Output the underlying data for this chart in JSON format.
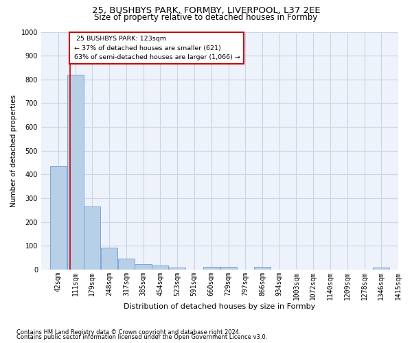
{
  "title1": "25, BUSHBYS PARK, FORMBY, LIVERPOOL, L37 2EE",
  "title2": "Size of property relative to detached houses in Formby",
  "xlabel": "Distribution of detached houses by size in Formby",
  "ylabel": "Number of detached properties",
  "footnote1": "Contains HM Land Registry data © Crown copyright and database right 2024.",
  "footnote2": "Contains public sector information licensed under the Open Government Licence v3.0.",
  "bar_color": "#b8cfe8",
  "bar_edge_color": "#6b9fd4",
  "grid_color": "#c8d4e8",
  "subject_line_color": "#cc0000",
  "annotation_box_color": "#cc0000",
  "bins": [
    42,
    111,
    179,
    248,
    317,
    385,
    454,
    523,
    591,
    660,
    729,
    797,
    866,
    934,
    1003,
    1072,
    1140,
    1209,
    1278,
    1346,
    1415
  ],
  "counts": [
    435,
    820,
    265,
    92,
    46,
    22,
    16,
    10,
    0,
    12,
    12,
    0,
    12,
    0,
    0,
    0,
    0,
    0,
    0,
    9
  ],
  "subject_size": 123,
  "subject_label": "25 BUSHBYS PARK: 123sqm",
  "annotation_line1": "← 37% of detached houses are smaller (621)",
  "annotation_line2": "63% of semi-detached houses are larger (1,066) →",
  "ylim": [
    0,
    1000
  ],
  "yticks": [
    0,
    100,
    200,
    300,
    400,
    500,
    600,
    700,
    800,
    900,
    1000
  ],
  "bg_color": "#eef2fa",
  "title1_fontsize": 9.5,
  "title2_fontsize": 8.5,
  "xlabel_fontsize": 8,
  "ylabel_fontsize": 7.5,
  "tick_fontsize": 7,
  "footnote_fontsize": 6
}
